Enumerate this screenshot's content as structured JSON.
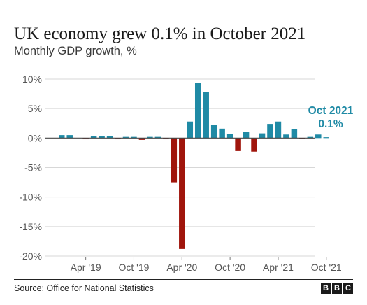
{
  "title": "UK economy grew 0.1% in October 2021",
  "subtitle": "Monthly GDP growth, %",
  "footer": {
    "source": "Source: Office for National Statistics",
    "logo": [
      "B",
      "B",
      "C"
    ]
  },
  "colors": {
    "positive": "#1f8aa5",
    "negative": "#a0150c",
    "grid": "#d7d7d7",
    "zero": "#444444",
    "annotation": "#1f8aa5",
    "text": "#555555"
  },
  "chart_data": {
    "type": "bar",
    "ylim": [
      -20,
      10
    ],
    "yticks": [
      10,
      5,
      0,
      -5,
      -10,
      -15,
      -20
    ],
    "ytick_labels": [
      "10%",
      "5%",
      "0%",
      "-5%",
      "-10%",
      "-15%",
      "-20%"
    ],
    "xtick_labels": [
      {
        "label": "Apr '19",
        "index": 3
      },
      {
        "label": "Oct '19",
        "index": 9
      },
      {
        "label": "Apr '20",
        "index": 15
      },
      {
        "label": "Oct '20",
        "index": 21
      },
      {
        "label": "Apr '21",
        "index": 27
      },
      {
        "label": "Oct '21",
        "index": 33
      }
    ],
    "categories": [
      "Jan '19",
      "Feb '19",
      "Mar '19",
      "Apr '19",
      "May '19",
      "Jun '19",
      "Jul '19",
      "Aug '19",
      "Sep '19",
      "Oct '19",
      "Nov '19",
      "Dec '19",
      "Jan '20",
      "Feb '20",
      "Mar '20",
      "Apr '20",
      "May '20",
      "Jun '20",
      "Jul '20",
      "Aug '20",
      "Sep '20",
      "Oct '20",
      "Nov '20",
      "Dec '20",
      "Jan '21",
      "Feb '21",
      "Mar '21",
      "Apr '21",
      "May '21",
      "Jun '21",
      "Jul '21",
      "Aug '21",
      "Sep '21",
      "Oct '21"
    ],
    "values": [
      0.5,
      0.5,
      0.0,
      -0.2,
      0.3,
      0.3,
      0.3,
      -0.2,
      0.2,
      0.2,
      -0.3,
      0.2,
      0.2,
      -0.2,
      -7.5,
      -18.8,
      2.8,
      9.4,
      7.8,
      2.2,
      1.6,
      0.7,
      -2.2,
      1.0,
      -2.3,
      0.8,
      2.4,
      2.8,
      0.6,
      1.5,
      -0.1,
      0.2,
      0.6,
      0.1
    ],
    "annotation": {
      "label": "Oct 2021",
      "value_label": "0.1%",
      "index": 33
    }
  }
}
